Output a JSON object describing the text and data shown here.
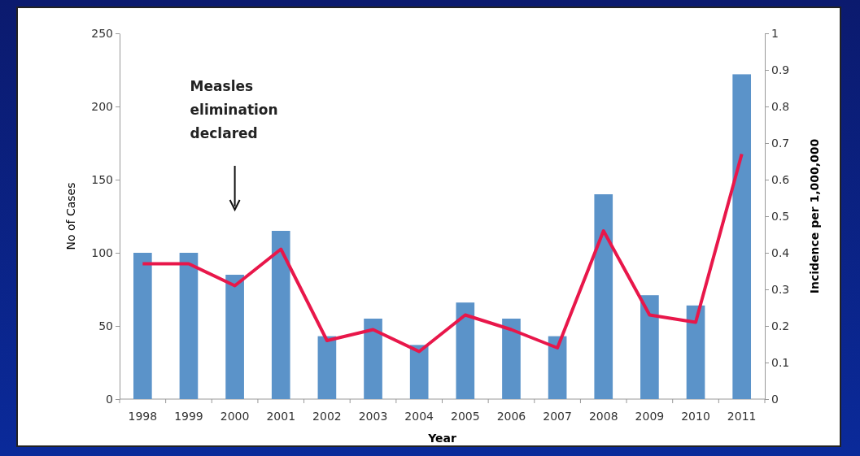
{
  "chart_data": {
    "type": "bar",
    "xlabel": "Year",
    "ylabel": "No of Cases",
    "y2label": "Incidence per 1,000,000",
    "categories": [
      "1998",
      "1999",
      "2000",
      "2001",
      "2002",
      "2003",
      "2004",
      "2005",
      "2006",
      "2007",
      "2008",
      "2009",
      "2010",
      "2011"
    ],
    "series": [
      {
        "color": "#5b93c9",
        "values": [
          100,
          100,
          85,
          115,
          43,
          55,
          37,
          66,
          55,
          43,
          140,
          71,
          64,
          222
        ]
      },
      {
        "type": "line",
        "axis": "y2",
        "color": "#e8174a",
        "values": [
          0.37,
          0.37,
          0.31,
          0.41,
          0.16,
          0.19,
          0.13,
          0.23,
          0.19,
          0.14,
          0.46,
          0.23,
          0.21,
          0.67
        ]
      }
    ],
    "ylim": [
      0,
      250
    ],
    "yticks": [
      0,
      50,
      100,
      150,
      200,
      250
    ],
    "y2lim": [
      0,
      1
    ],
    "y2ticks": [
      0,
      0.1,
      0.2,
      0.3,
      0.4,
      0.5,
      0.6,
      0.7,
      0.8,
      0.9,
      1
    ],
    "annotations": [
      "Measles elimination declared"
    ],
    "grid": false,
    "marker": "none",
    "line_style": "solid"
  }
}
